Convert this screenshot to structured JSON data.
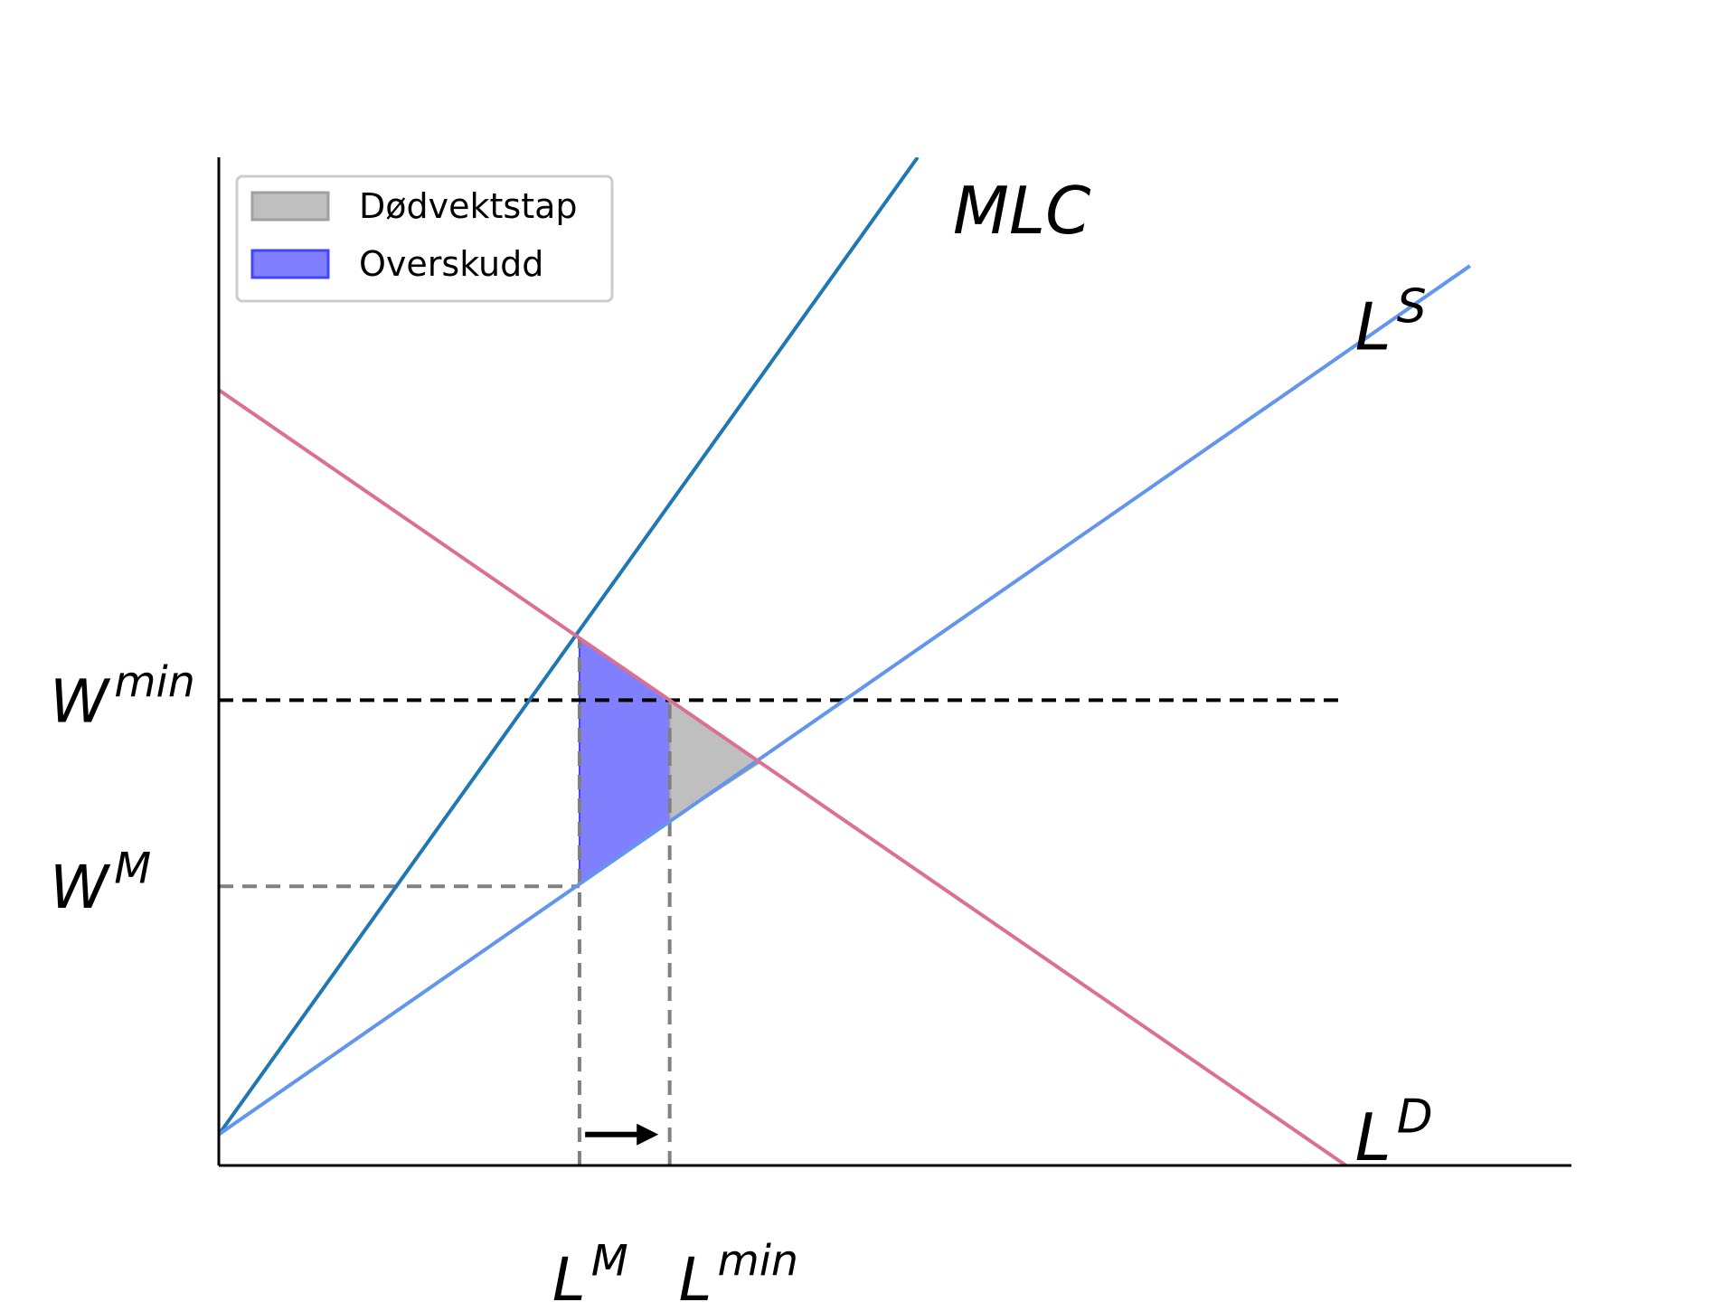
{
  "chart_data": {
    "type": "line",
    "title": "",
    "xlabel": "",
    "ylabel": "",
    "xlim": [
      0,
      12
    ],
    "ylim": [
      0,
      13
    ],
    "show_x_ticks": false,
    "show_y_ticks": false,
    "grid": false,
    "legend": {
      "placement": "top-left",
      "entries": [
        {
          "label": "Dødvektstap",
          "color": "#a0a0a0"
        },
        {
          "label": "Overskudd",
          "color": "#4444ff"
        }
      ]
    },
    "series": [
      {
        "name": "MLC",
        "color": "#1f77b4",
        "x": [
          0,
          6.2
        ],
        "y": [
          0.4,
          13.0
        ]
      },
      {
        "name": "L",
        "sup": "S",
        "color": "#6495ed",
        "x": [
          0,
          11.1
        ],
        "y": [
          0.4,
          11.6
        ]
      },
      {
        "name": "L",
        "sup": "D",
        "color": "#db7093",
        "x": [
          0,
          10.0
        ],
        "y": [
          10.0,
          0.0
        ]
      }
    ],
    "reference_lines": {
      "wage_min": {
        "y": 6.0,
        "x_end": 10.0,
        "color": "#000000"
      },
      "wage_m": {
        "y": 3.6,
        "color": "#808080"
      },
      "labor_m": {
        "x": 3.2,
        "color": "#808080"
      },
      "labor_min": {
        "x": 4.0,
        "color": "#808080"
      }
    },
    "areas": {
      "overskudd": {
        "color": "#8080ff",
        "points": [
          [
            3.2,
            6.8
          ],
          [
            4.0,
            6.0
          ],
          [
            4.0,
            4.44
          ],
          [
            3.2,
            3.63
          ]
        ]
      },
      "dodvektstap": {
        "color": "#bfbfbf",
        "points": [
          [
            4.0,
            6.0
          ],
          [
            4.8,
            5.2
          ],
          [
            4.0,
            4.44
          ]
        ]
      }
    },
    "arrow": {
      "from": [
        3.25,
        0.4
      ],
      "to": [
        3.9,
        0.4
      ],
      "color": "#000000"
    },
    "y_tick_labels": [
      {
        "value": 6.0,
        "base": "W",
        "sup": "min"
      },
      {
        "value": 3.6,
        "base": "W",
        "sup": "M"
      }
    ],
    "x_tick_labels": [
      {
        "value": 3.2,
        "base": "L",
        "sup": "M"
      },
      {
        "value": 4.0,
        "base": "L",
        "sup": "min"
      }
    ],
    "curve_labels": [
      {
        "series": "MLC",
        "text": "MLC",
        "at": [
          6.4,
          12.3
        ]
      },
      {
        "series": "LS",
        "base": "L",
        "sup": "S",
        "at": [
          10.0,
          10.8
        ]
      },
      {
        "series": "LD",
        "base": "L",
        "sup": "D",
        "at": [
          10.0,
          0.35
        ]
      }
    ]
  }
}
